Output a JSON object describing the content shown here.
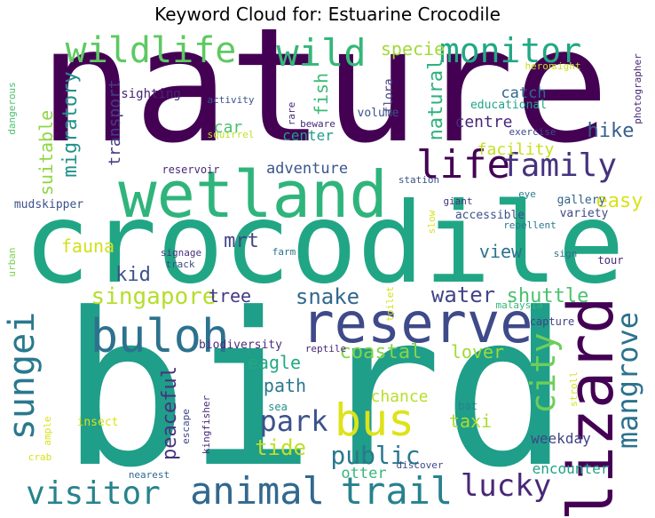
{
  "chart_data": {
    "type": "wordcloud",
    "title": "Keyword Cloud for: Estuarine Crocodile",
    "color_scale": "viridis",
    "words": [
      {
        "text": "nature",
        "weight": 1.0,
        "color": "#440154"
      },
      {
        "text": "bird",
        "weight": 0.97,
        "color": "#1f9e89"
      },
      {
        "text": "crocodile",
        "weight": 0.9,
        "color": "#21a685"
      },
      {
        "text": "wetland",
        "weight": 0.62,
        "color": "#2fb47c"
      },
      {
        "text": "reserve",
        "weight": 0.55,
        "color": "#3e4a89"
      },
      {
        "text": "buloh",
        "weight": 0.5,
        "color": "#2c728e"
      },
      {
        "text": "lizard",
        "weight": 0.5,
        "color": "#440154"
      },
      {
        "text": "bus",
        "weight": 0.42,
        "color": "#dde318"
      },
      {
        "text": "animal",
        "weight": 0.4,
        "color": "#31688e"
      },
      {
        "text": "trail",
        "weight": 0.4,
        "color": "#26828e"
      },
      {
        "text": "sungei",
        "weight": 0.4,
        "color": "#2a788e"
      },
      {
        "text": "wild",
        "weight": 0.38,
        "color": "#35b779"
      },
      {
        "text": "wildlife",
        "weight": 0.38,
        "color": "#5ec962"
      },
      {
        "text": "monitor",
        "weight": 0.38,
        "color": "#22a884"
      },
      {
        "text": "life",
        "weight": 0.38,
        "color": "#440154"
      },
      {
        "text": "mangrove",
        "weight": 0.36,
        "color": "#2c728e"
      },
      {
        "text": "visitor",
        "weight": 0.33,
        "color": "#25838e"
      },
      {
        "text": "family",
        "weight": 0.33,
        "color": "#46337e"
      },
      {
        "text": "city",
        "weight": 0.33,
        "color": "#6ece58"
      },
      {
        "text": "park",
        "weight": 0.3,
        "color": "#3b528b"
      },
      {
        "text": "lucky",
        "weight": 0.28,
        "color": "#482878"
      },
      {
        "text": "singapore",
        "weight": 0.22,
        "color": "#b5de2b"
      },
      {
        "text": "coastal",
        "weight": 0.2,
        "color": "#86d549"
      },
      {
        "text": "lover",
        "weight": 0.18,
        "color": "#9fda3a"
      },
      {
        "text": "public",
        "weight": 0.2,
        "color": "#2a788e"
      },
      {
        "text": "water",
        "weight": 0.2,
        "color": "#414487"
      },
      {
        "text": "shuttle",
        "weight": 0.2,
        "color": "#4ac16d"
      },
      {
        "text": "snake",
        "weight": 0.2,
        "color": "#31688e"
      },
      {
        "text": "hike",
        "weight": 0.18,
        "color": "#355f8d"
      },
      {
        "text": "natural",
        "weight": 0.18,
        "color": "#2db27d"
      },
      {
        "text": "migratory",
        "weight": 0.17,
        "color": "#21918c"
      },
      {
        "text": "suitable",
        "weight": 0.16,
        "color": "#8fd744"
      },
      {
        "text": "fish",
        "weight": 0.17,
        "color": "#3cbb75"
      },
      {
        "text": "specie",
        "weight": 0.16,
        "color": "#a0da39"
      },
      {
        "text": "easy",
        "weight": 0.18,
        "color": "#d8e219"
      },
      {
        "text": "peaceful",
        "weight": 0.18,
        "color": "#46327e"
      },
      {
        "text": "tide",
        "weight": 0.18,
        "color": "#c2df23"
      },
      {
        "text": "taxi",
        "weight": 0.16,
        "color": "#aadc32"
      },
      {
        "text": "path",
        "weight": 0.16,
        "color": "#2a788e"
      },
      {
        "text": "eagle",
        "weight": 0.16,
        "color": "#22a884"
      },
      {
        "text": "chance",
        "weight": 0.15,
        "color": "#b8de29"
      },
      {
        "text": "tree",
        "weight": 0.15,
        "color": "#443983"
      },
      {
        "text": "view",
        "weight": 0.15,
        "color": "#2c728e"
      },
      {
        "text": "mrt",
        "weight": 0.15,
        "color": "#414487"
      },
      {
        "text": "kid",
        "weight": 0.15,
        "color": "#3b528b"
      },
      {
        "text": "fauna",
        "weight": 0.14,
        "color": "#d0e11c"
      },
      {
        "text": "adventure",
        "weight": 0.13,
        "color": "#39568c"
      },
      {
        "text": "car",
        "weight": 0.13,
        "color": "#4ac16d"
      },
      {
        "text": "transport",
        "weight": 0.13,
        "color": "#433e85"
      },
      {
        "text": "centre",
        "weight": 0.13,
        "color": "#482878"
      },
      {
        "text": "facility",
        "weight": 0.14,
        "color": "#c5e021"
      },
      {
        "text": "catch",
        "weight": 0.12,
        "color": "#31688e"
      },
      {
        "text": "otter",
        "weight": 0.13,
        "color": "#35b779"
      },
      {
        "text": "weekday",
        "weight": 0.12,
        "color": "#414487"
      },
      {
        "text": "encounter",
        "weight": 0.12,
        "color": "#20a386"
      },
      {
        "text": "center",
        "weight": 0.12,
        "color": "#1f9e89"
      },
      {
        "text": "educational",
        "weight": 0.1,
        "color": "#20a486"
      },
      {
        "text": "sighting",
        "weight": 0.1,
        "color": "#482475"
      },
      {
        "text": "accessible",
        "weight": 0.09,
        "color": "#3b528b"
      },
      {
        "text": "gallery",
        "weight": 0.09,
        "color": "#33638d"
      },
      {
        "text": "variety",
        "weight": 0.09,
        "color": "#3e4a89"
      },
      {
        "text": "flora",
        "weight": 0.09,
        "color": "#433e85"
      },
      {
        "text": "volume",
        "weight": 0.09,
        "color": "#3b528b"
      },
      {
        "text": "biodiversity",
        "weight": 0.09,
        "color": "#472d7b"
      },
      {
        "text": "mudskipper",
        "weight": 0.09,
        "color": "#3b528b"
      },
      {
        "text": "reservoir",
        "weight": 0.08,
        "color": "#482878"
      },
      {
        "text": "capture",
        "weight": 0.09,
        "color": "#414487"
      },
      {
        "text": "tour",
        "weight": 0.08,
        "color": "#482878"
      },
      {
        "text": "sea",
        "weight": 0.08,
        "color": "#21918c"
      },
      {
        "text": "bat",
        "weight": 0.08,
        "color": "#25838e"
      },
      {
        "text": "activity",
        "weight": 0.07,
        "color": "#3b528b"
      },
      {
        "text": "exercise",
        "weight": 0.07,
        "color": "#3e4a89"
      },
      {
        "text": "squirrel",
        "weight": 0.07,
        "color": "#c2df23"
      },
      {
        "text": "beware",
        "weight": 0.06,
        "color": "#482878"
      },
      {
        "text": "rare",
        "weight": 0.06,
        "color": "#482878"
      },
      {
        "text": "heron",
        "weight": 0.06,
        "color": "#c8e020"
      },
      {
        "text": "sight",
        "weight": 0.06,
        "color": "#c8e020"
      },
      {
        "text": "photographer",
        "weight": 0.06,
        "color": "#482878"
      },
      {
        "text": "dangerous",
        "weight": 0.06,
        "color": "#4ac16d"
      },
      {
        "text": "station",
        "weight": 0.06,
        "color": "#3b528b"
      },
      {
        "text": "giant",
        "weight": 0.06,
        "color": "#46327e"
      },
      {
        "text": "eye",
        "weight": 0.06,
        "color": "#287d8e"
      },
      {
        "text": "slow",
        "weight": 0.06,
        "color": "#d8e219"
      },
      {
        "text": "repellent",
        "weight": 0.06,
        "color": "#2a788e"
      },
      {
        "text": "sign",
        "weight": 0.06,
        "color": "#2c728e"
      },
      {
        "text": "signage",
        "weight": 0.06,
        "color": "#46327e"
      },
      {
        "text": "track",
        "weight": 0.06,
        "color": "#3e4a89"
      },
      {
        "text": "farm",
        "weight": 0.06,
        "color": "#2c728e"
      },
      {
        "text": "urban",
        "weight": 0.06,
        "color": "#7ad151"
      },
      {
        "text": "toilet",
        "weight": 0.06,
        "color": "#d2e21b"
      },
      {
        "text": "malaysia",
        "weight": 0.06,
        "color": "#35b779"
      },
      {
        "text": "reptile",
        "weight": 0.06,
        "color": "#482878"
      },
      {
        "text": "stroll",
        "weight": 0.06,
        "color": "#d5e21a"
      },
      {
        "text": "insect",
        "weight": 0.07,
        "color": "#d8e219"
      },
      {
        "text": "escape",
        "weight": 0.06,
        "color": "#3e4a89"
      },
      {
        "text": "kingfisher",
        "weight": 0.06,
        "color": "#482878"
      },
      {
        "text": "ample",
        "weight": 0.06,
        "color": "#d8e219"
      },
      {
        "text": "crab",
        "weight": 0.06,
        "color": "#d8e219"
      },
      {
        "text": "nearest",
        "weight": 0.06,
        "color": "#31688e"
      },
      {
        "text": "discover",
        "weight": 0.06,
        "color": "#3e4a89"
      }
    ]
  }
}
